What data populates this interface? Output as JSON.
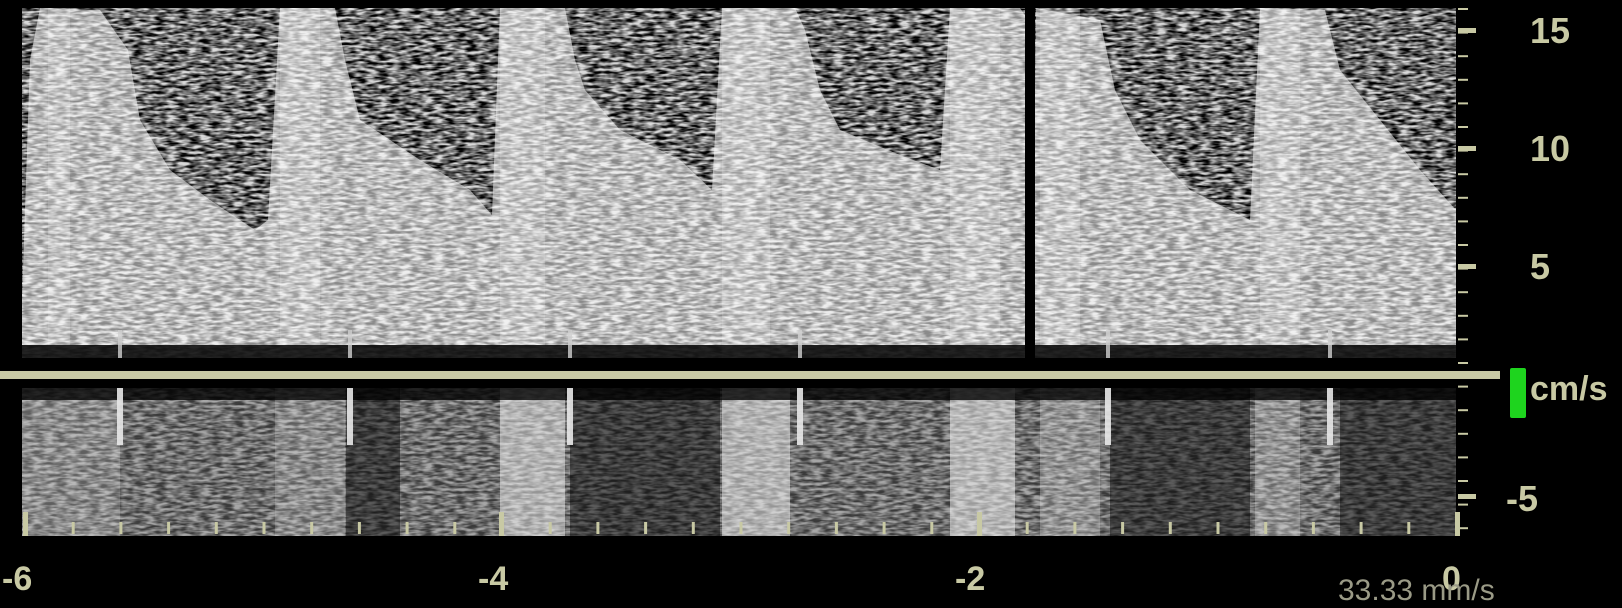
{
  "display": {
    "velocity_unit": "cm/s",
    "sweep_speed": "33.33 mm/s",
    "velocity_scale": {
      "ticks": [
        15,
        10,
        5,
        -5
      ],
      "labels": [
        "15",
        "10",
        "5",
        "-5"
      ],
      "range": [
        -6.5,
        16
      ]
    },
    "time_axis": {
      "ticks": [
        -6,
        -4,
        -2,
        0
      ],
      "labels": [
        "-6",
        "-4",
        "-2",
        "0"
      ],
      "range": [
        -6,
        0
      ]
    },
    "colors": {
      "scale": "#c8c9a4",
      "baseline": "#c8c9a4",
      "gain_indicator": "#1ed41e",
      "background": "#000000"
    }
  }
}
